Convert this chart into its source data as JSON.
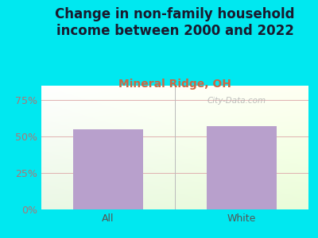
{
  "title": "Change in non-family household\nincome between 2000 and 2022",
  "subtitle": "Mineral Ridge, OH",
  "categories": [
    "All",
    "White"
  ],
  "values": [
    55,
    57
  ],
  "bar_color": "#b8a0cc",
  "title_color": "#1a1a2e",
  "subtitle_color": "#cc6644",
  "ytick_color": "#aa7777",
  "xtick_color": "#555555",
  "background_outer": "#00e8f0",
  "yticks": [
    0,
    25,
    50,
    75
  ],
  "ylim": [
    0,
    85
  ],
  "grid_color": "#e0b0b0",
  "watermark": "City-Data.com",
  "title_fontsize": 12,
  "subtitle_fontsize": 10,
  "tick_fontsize": 9
}
